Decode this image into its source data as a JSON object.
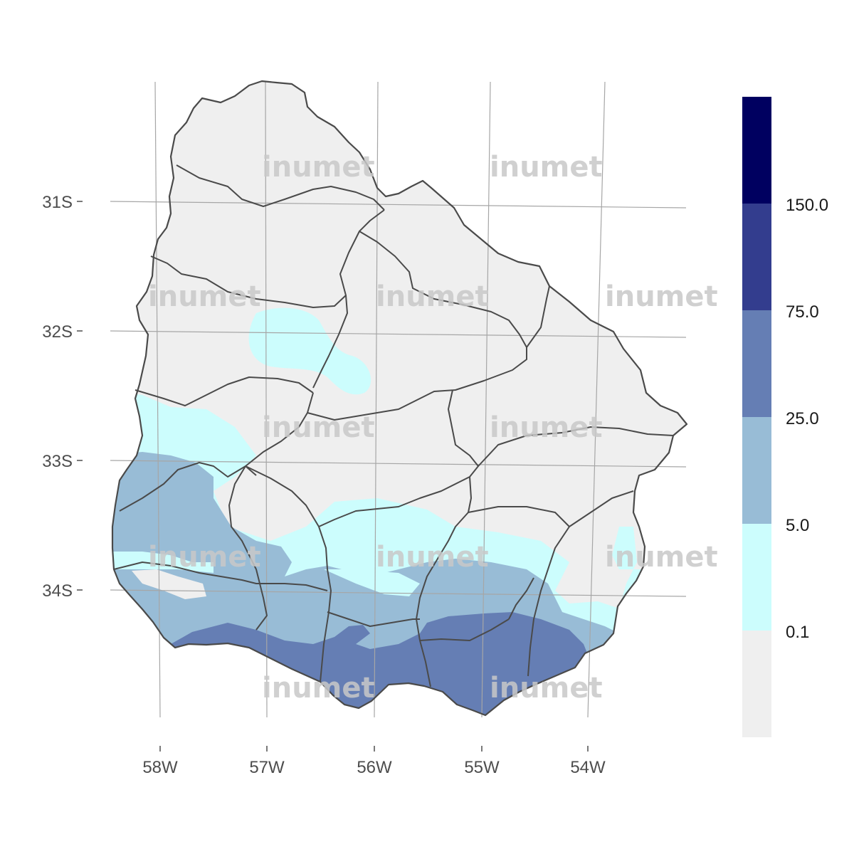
{
  "map": {
    "lon_ticks": [
      "58W",
      "57W",
      "56W",
      "55W",
      "54W"
    ],
    "lat_ticks": [
      "31S",
      "32S",
      "33S",
      "34S"
    ],
    "watermark": "inumet"
  },
  "legend": {
    "breaks": [
      "150.0",
      "75.0",
      "25.0",
      "5.0",
      "0.1"
    ],
    "colors": [
      "#000060",
      "#333d8e",
      "#657eb4",
      "#98bcd6",
      "#ccfdfd",
      "#efefef"
    ]
  }
}
